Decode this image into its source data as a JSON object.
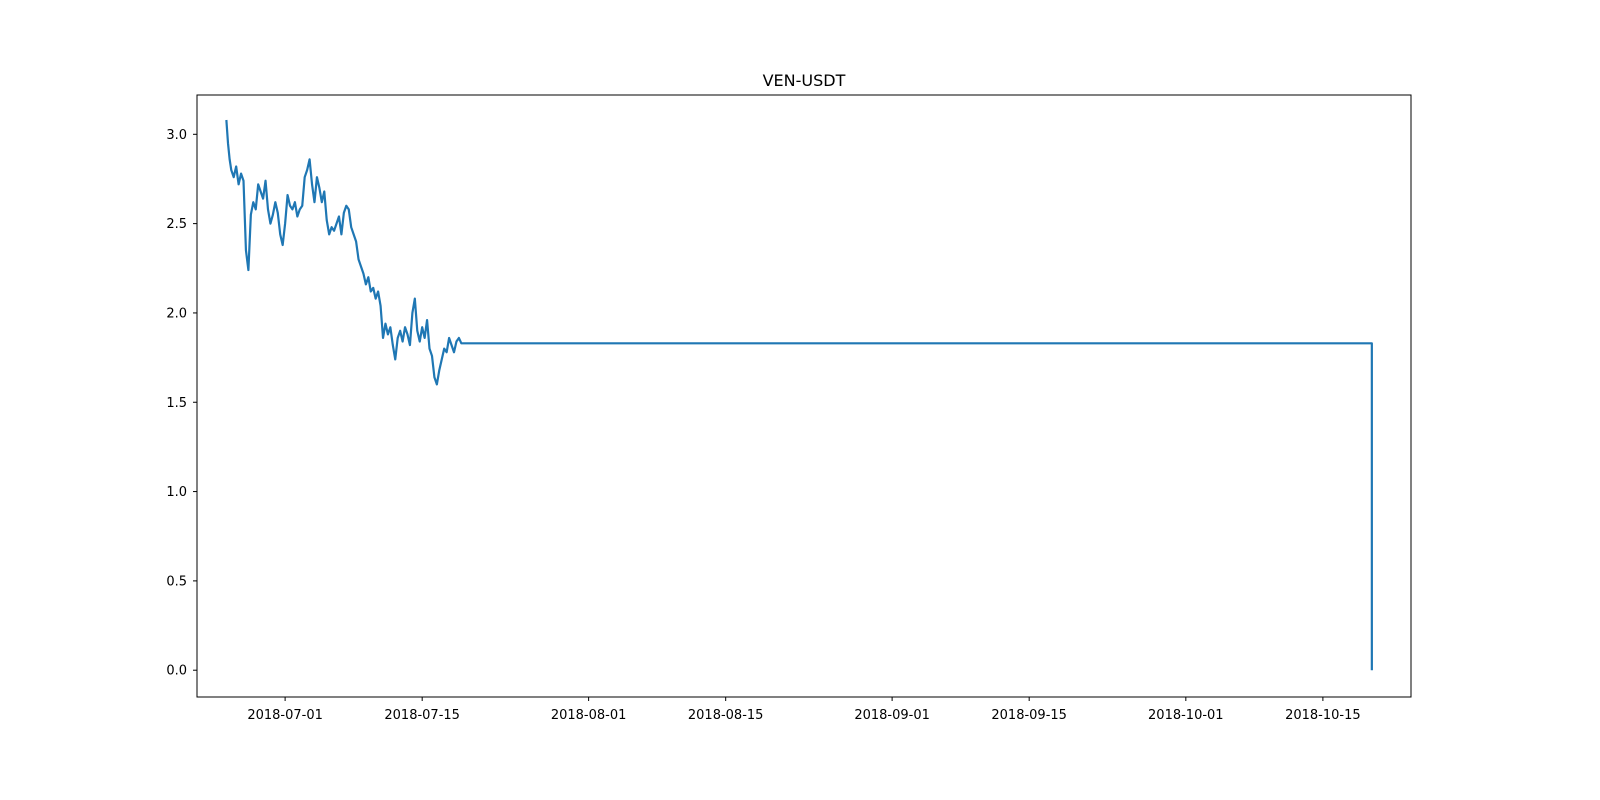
{
  "chart_data": {
    "type": "line",
    "title": "VEN-USDT",
    "xlabel": "",
    "ylabel": "",
    "x_is_date": true,
    "xlim": [
      "2018-06-22",
      "2018-10-24"
    ],
    "ylim": [
      -0.15,
      3.22
    ],
    "x_ticks": [
      "2018-07-01",
      "2018-07-15",
      "2018-08-01",
      "2018-08-15",
      "2018-09-01",
      "2018-09-15",
      "2018-10-01",
      "2018-10-15"
    ],
    "y_ticks": [
      0.0,
      0.5,
      1.0,
      1.5,
      2.0,
      2.5,
      3.0
    ],
    "y_tick_labels": [
      "0.0",
      "0.5",
      "1.0",
      "1.5",
      "2.0",
      "2.5",
      "3.0"
    ],
    "line_color": "#1f77b4",
    "grid": false,
    "series": [
      {
        "x": [
          "2018-06-25 00:00",
          "2018-06-25 04:00",
          "2018-06-25 08:00",
          "2018-06-25 12:00",
          "2018-06-25 18:00",
          "2018-06-26 00:00",
          "2018-06-26 06:00",
          "2018-06-26 12:00",
          "2018-06-26 18:00",
          "2018-06-27 00:00",
          "2018-06-27 06:00",
          "2018-06-27 12:00",
          "2018-06-27 18:00",
          "2018-06-28 00:00",
          "2018-06-28 06:00",
          "2018-06-28 12:00",
          "2018-06-28 18:00",
          "2018-06-29 00:00",
          "2018-06-29 06:00",
          "2018-06-29 12:00",
          "2018-06-29 18:00",
          "2018-06-30 00:00",
          "2018-06-30 06:00",
          "2018-06-30 12:00",
          "2018-06-30 18:00",
          "2018-07-01 00:00",
          "2018-07-01 06:00",
          "2018-07-01 12:00",
          "2018-07-01 18:00",
          "2018-07-02 00:00",
          "2018-07-02 06:00",
          "2018-07-02 12:00",
          "2018-07-02 18:00",
          "2018-07-03 00:00",
          "2018-07-03 06:00",
          "2018-07-03 12:00",
          "2018-07-03 18:00",
          "2018-07-04 00:00",
          "2018-07-04 06:00",
          "2018-07-04 12:00",
          "2018-07-04 18:00",
          "2018-07-05 00:00",
          "2018-07-05 06:00",
          "2018-07-05 12:00",
          "2018-07-05 18:00",
          "2018-07-06 00:00",
          "2018-07-06 06:00",
          "2018-07-06 12:00",
          "2018-07-06 18:00",
          "2018-07-07 00:00",
          "2018-07-07 06:00",
          "2018-07-07 12:00",
          "2018-07-07 18:00",
          "2018-07-08 00:00",
          "2018-07-08 06:00",
          "2018-07-08 12:00",
          "2018-07-08 18:00",
          "2018-07-09 00:00",
          "2018-07-09 06:00",
          "2018-07-09 12:00",
          "2018-07-09 18:00",
          "2018-07-10 00:00",
          "2018-07-10 06:00",
          "2018-07-10 12:00",
          "2018-07-10 18:00",
          "2018-07-11 00:00",
          "2018-07-11 06:00",
          "2018-07-11 12:00",
          "2018-07-11 18:00",
          "2018-07-12 00:00",
          "2018-07-12 06:00",
          "2018-07-12 12:00",
          "2018-07-12 18:00",
          "2018-07-13 00:00",
          "2018-07-13 06:00",
          "2018-07-13 12:00",
          "2018-07-13 18:00",
          "2018-07-14 00:00",
          "2018-07-14 06:00",
          "2018-07-14 12:00",
          "2018-07-14 18:00",
          "2018-07-15 00:00",
          "2018-07-15 06:00",
          "2018-07-15 12:00",
          "2018-07-15 18:00",
          "2018-07-16 00:00",
          "2018-07-16 06:00",
          "2018-07-16 12:00",
          "2018-07-16 18:00",
          "2018-07-17 00:00",
          "2018-07-17 06:00",
          "2018-07-17 12:00",
          "2018-07-17 18:00",
          "2018-07-18 00:00",
          "2018-07-18 06:00",
          "2018-07-18 12:00",
          "2018-07-18 18:00",
          "2018-07-19 00:00",
          "2018-07-19 06:00",
          "2018-07-19 12:00",
          "2018-07-19 18:00",
          "2018-07-20 00:00",
          "2018-07-20 06:00",
          "2018-07-20 12:00",
          "2018-07-20 18:00",
          "2018-07-21 00:00",
          "2018-07-21 06:00",
          "2018-07-21 12:00",
          "2018-07-21 18:00",
          "2018-07-22 00:00",
          "2018-07-22 06:00",
          "2018-07-22 12:00",
          "2018-07-22 18:00",
          "2018-07-23 00:00",
          "2018-07-23 06:00",
          "2018-10-20 00:00",
          "2018-10-20 00:01"
        ],
        "y": [
          3.08,
          2.95,
          2.86,
          2.8,
          2.76,
          2.82,
          2.72,
          2.78,
          2.74,
          2.35,
          2.24,
          2.55,
          2.62,
          2.58,
          2.72,
          2.68,
          2.64,
          2.74,
          2.58,
          2.5,
          2.55,
          2.62,
          2.56,
          2.44,
          2.38,
          2.5,
          2.66,
          2.6,
          2.58,
          2.62,
          2.54,
          2.58,
          2.6,
          2.76,
          2.8,
          2.86,
          2.72,
          2.62,
          2.76,
          2.7,
          2.62,
          2.68,
          2.52,
          2.44,
          2.48,
          2.46,
          2.5,
          2.54,
          2.44,
          2.56,
          2.6,
          2.58,
          2.48,
          2.44,
          2.4,
          2.3,
          2.26,
          2.22,
          2.16,
          2.2,
          2.12,
          2.14,
          2.08,
          2.12,
          2.04,
          1.86,
          1.94,
          1.88,
          1.92,
          1.82,
          1.74,
          1.86,
          1.9,
          1.84,
          1.92,
          1.88,
          1.82,
          2.0,
          2.08,
          1.9,
          1.84,
          1.92,
          1.86,
          1.96,
          1.8,
          1.76,
          1.64,
          1.6,
          1.68,
          1.74,
          1.8,
          1.78,
          1.86,
          1.82,
          1.78,
          1.84,
          1.86,
          1.83,
          1.83,
          1.83,
          1.83,
          1.83,
          1.83,
          1.83,
          1.83,
          1.83,
          1.83,
          1.83,
          1.83,
          1.83,
          1.83,
          1.83,
          1.83,
          1.83,
          1.83,
          1.83,
          0.0
        ]
      }
    ]
  }
}
